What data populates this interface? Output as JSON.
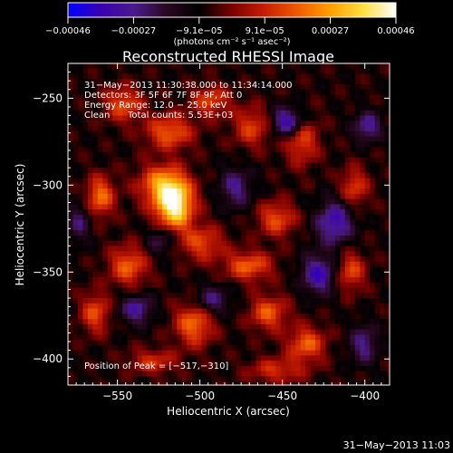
{
  "chart_data": {
    "type": "heatmap",
    "title": "Reconstructed RHESSI Image",
    "xlabel": "Heliocentric X (arcsec)",
    "ylabel": "Heliocentric Y (arcsec)",
    "xlim": [
      -580,
      -385
    ],
    "ylim": [
      -415,
      -230
    ],
    "x_ticks": [
      -550,
      -500,
      -450,
      -400
    ],
    "y_ticks": [
      -250,
      -300,
      -350,
      -400
    ],
    "x_tick_labels": [
      "−550",
      "−500",
      "−450",
      "−400"
    ],
    "y_tick_labels": [
      "−250",
      "−300",
      "−350",
      "−400"
    ],
    "colorbar": {
      "min": -0.00046,
      "max": 0.00046,
      "tick_labels": [
        "−0.00046",
        "−0.00027",
        "−9.1e−05",
        "9.1e−05",
        "0.00027",
        "0.00046"
      ],
      "unit_label": "(photons cm⁻² s⁻¹ asec⁻²)",
      "colormap": [
        "#0000ff",
        "#3a00b0",
        "#4b1a8c",
        "#2a0820",
        "#000000",
        "#7a0000",
        "#c81e00",
        "#f05a00",
        "#ffa000",
        "#ffe040",
        "#ffffff"
      ]
    },
    "annotations": {
      "time_range": "31−May−2013 11:30:38.000 to 11:34:14.000",
      "detectors": "Detectors: 3F 5F 6F 7F 8F 9F, Att 0",
      "energy": "Energy Range: 12.0 − 25.0 keV",
      "method": "Clean",
      "counts": "Total counts: 5.53E+03",
      "peak": "Position of Peak = [−517,−310]"
    },
    "peak": {
      "x": -517,
      "y": -310
    },
    "blobs": [
      {
        "x": -517,
        "y": -310,
        "amp": 1.0,
        "sx": 8,
        "sy": 10
      },
      {
        "x": -525,
        "y": -298,
        "amp": 0.55,
        "sx": 10,
        "sy": 8
      },
      {
        "x": -562,
        "y": -305,
        "amp": 0.55,
        "sx": 6,
        "sy": 8
      },
      {
        "x": -548,
        "y": -252,
        "amp": 0.45,
        "sx": 8,
        "sy": 7
      },
      {
        "x": -520,
        "y": -268,
        "amp": 0.5,
        "sx": 10,
        "sy": 7
      },
      {
        "x": -495,
        "y": -250,
        "amp": 0.42,
        "sx": 8,
        "sy": 6
      },
      {
        "x": -470,
        "y": -265,
        "amp": 0.4,
        "sx": 8,
        "sy": 8
      },
      {
        "x": -440,
        "y": -272,
        "amp": 0.45,
        "sx": 7,
        "sy": 10
      },
      {
        "x": -408,
        "y": -300,
        "amp": 0.4,
        "sx": 6,
        "sy": 8
      },
      {
        "x": -455,
        "y": -318,
        "amp": 0.45,
        "sx": 8,
        "sy": 7
      },
      {
        "x": -472,
        "y": -345,
        "amp": 0.5,
        "sx": 10,
        "sy": 6
      },
      {
        "x": -500,
        "y": -332,
        "amp": 0.42,
        "sx": 9,
        "sy": 7
      },
      {
        "x": -545,
        "y": -345,
        "amp": 0.5,
        "sx": 8,
        "sy": 8
      },
      {
        "x": -565,
        "y": -372,
        "amp": 0.45,
        "sx": 6,
        "sy": 8
      },
      {
        "x": -505,
        "y": -378,
        "amp": 0.55,
        "sx": 8,
        "sy": 9
      },
      {
        "x": -460,
        "y": -372,
        "amp": 0.48,
        "sx": 8,
        "sy": 7
      },
      {
        "x": -437,
        "y": -390,
        "amp": 0.5,
        "sx": 8,
        "sy": 7
      },
      {
        "x": -410,
        "y": -348,
        "amp": 0.42,
        "sx": 6,
        "sy": 8
      },
      {
        "x": -530,
        "y": -400,
        "amp": 0.35,
        "sx": 10,
        "sy": 5
      },
      {
        "x": -455,
        "y": -405,
        "amp": 0.35,
        "sx": 12,
        "sy": 5
      }
    ],
    "dips": [
      {
        "x": -448,
        "y": -262,
        "amp": 0.35,
        "sx": 7,
        "sy": 6
      },
      {
        "x": -420,
        "y": -320,
        "amp": 0.3,
        "sx": 8,
        "sy": 9
      },
      {
        "x": -430,
        "y": -350,
        "amp": 0.3,
        "sx": 7,
        "sy": 8
      },
      {
        "x": -400,
        "y": -265,
        "amp": 0.25,
        "sx": 6,
        "sy": 6
      },
      {
        "x": -540,
        "y": -370,
        "amp": 0.25,
        "sx": 7,
        "sy": 6
      },
      {
        "x": -495,
        "y": -365,
        "amp": 0.22,
        "sx": 8,
        "sy": 6
      },
      {
        "x": -480,
        "y": -300,
        "amp": 0.22,
        "sx": 7,
        "sy": 8
      },
      {
        "x": -525,
        "y": -330,
        "amp": 0.18,
        "sx": 6,
        "sy": 6
      },
      {
        "x": -402,
        "y": -390,
        "amp": 0.22,
        "sx": 6,
        "sy": 8
      },
      {
        "x": -575,
        "y": -320,
        "amp": 0.18,
        "sx": 5,
        "sy": 8
      }
    ]
  },
  "footer": {
    "timestamp": "31−May−2013 11:03"
  }
}
